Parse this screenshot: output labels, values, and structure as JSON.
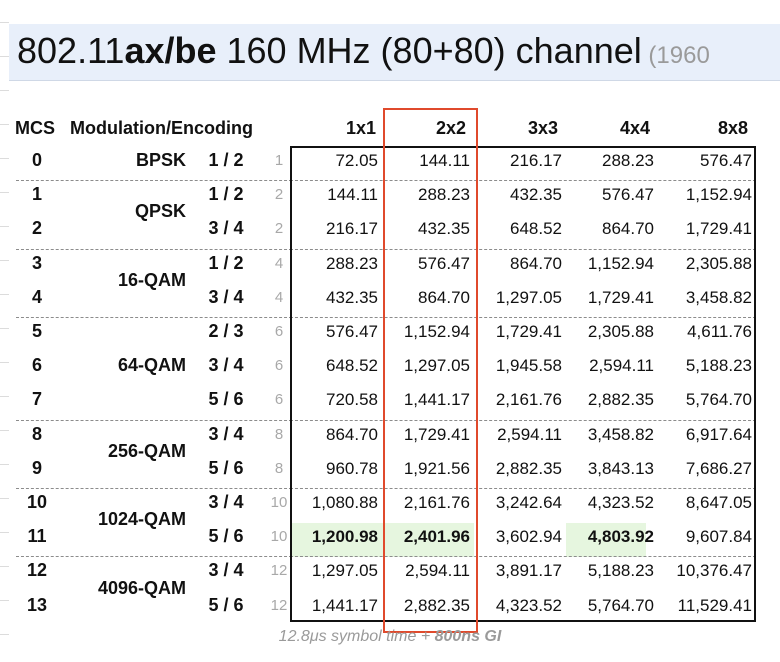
{
  "title": {
    "prefix": "802.11",
    "bold": "ax/be",
    "rest": " 160 MHz (80+80) channel",
    "sub": " (1960"
  },
  "headers": {
    "mcs": "MCS",
    "modulation": "Modulation/Encoding",
    "streams": [
      "1x1",
      "2x2",
      "3x3",
      "4x4",
      "8x8"
    ]
  },
  "rows": [
    {
      "mcs": "0",
      "mod": "BPSK",
      "cr": "1 / 2",
      "ss": "1",
      "vals": [
        "72.05",
        "144.11",
        "216.17",
        "288.23",
        "576.47"
      ]
    },
    {
      "mcs": "1",
      "mod": "QPSK",
      "cr": "1 / 2",
      "ss": "2",
      "vals": [
        "144.11",
        "288.23",
        "432.35",
        "576.47",
        "1,152.94"
      ]
    },
    {
      "mcs": "2",
      "mod": "",
      "cr": "3 / 4",
      "ss": "2",
      "vals": [
        "216.17",
        "432.35",
        "648.52",
        "864.70",
        "1,729.41"
      ]
    },
    {
      "mcs": "3",
      "mod": "16-QAM",
      "cr": "1 / 2",
      "ss": "4",
      "vals": [
        "288.23",
        "576.47",
        "864.70",
        "1,152.94",
        "2,305.88"
      ]
    },
    {
      "mcs": "4",
      "mod": "",
      "cr": "3 / 4",
      "ss": "4",
      "vals": [
        "432.35",
        "864.70",
        "1,297.05",
        "1,729.41",
        "3,458.82"
      ]
    },
    {
      "mcs": "5",
      "mod": "64-QAM",
      "cr": "2 / 3",
      "ss": "6",
      "vals": [
        "576.47",
        "1,152.94",
        "1,729.41",
        "2,305.88",
        "4,611.76"
      ]
    },
    {
      "mcs": "6",
      "mod": "",
      "cr": "3 / 4",
      "ss": "6",
      "vals": [
        "648.52",
        "1,297.05",
        "1,945.58",
        "2,594.11",
        "5,188.23"
      ]
    },
    {
      "mcs": "7",
      "mod": "",
      "cr": "5 / 6",
      "ss": "6",
      "vals": [
        "720.58",
        "1,441.17",
        "2,161.76",
        "2,882.35",
        "5,764.70"
      ]
    },
    {
      "mcs": "8",
      "mod": "256-QAM",
      "cr": "3 / 4",
      "ss": "8",
      "vals": [
        "864.70",
        "1,729.41",
        "2,594.11",
        "3,458.82",
        "6,917.64"
      ]
    },
    {
      "mcs": "9",
      "mod": "",
      "cr": "5 / 6",
      "ss": "8",
      "vals": [
        "960.78",
        "1,921.56",
        "2,882.35",
        "3,843.13",
        "7,686.27"
      ]
    },
    {
      "mcs": "10",
      "mod": "1024-QAM",
      "cr": "3 / 4",
      "ss": "10",
      "vals": [
        "1,080.88",
        "2,161.76",
        "3,242.64",
        "4,323.52",
        "8,647.05"
      ]
    },
    {
      "mcs": "11",
      "mod": "",
      "cr": "5 / 6",
      "ss": "10",
      "vals": [
        "1,200.98",
        "2,401.96",
        "3,602.94",
        "4,803.92",
        "9,607.84"
      ]
    },
    {
      "mcs": "12",
      "mod": "4096-QAM",
      "cr": "3 / 4",
      "ss": "12",
      "vals": [
        "1,297.05",
        "2,594.11",
        "3,891.17",
        "5,188.23",
        "10,376.47"
      ]
    },
    {
      "mcs": "13",
      "mod": "",
      "cr": "5 / 6",
      "ss": "12",
      "vals": [
        "1,441.17",
        "2,882.35",
        "4,323.52",
        "5,764.70",
        "11,529.41"
      ]
    }
  ],
  "highlight": {
    "row_mcs": "11",
    "bold_cols": [
      0,
      1,
      3
    ],
    "color": "#e6f6df"
  },
  "footer": {
    "italic": "12.8μs symbol time + ",
    "bold": "800ns GI"
  },
  "colors": {
    "title_bg": "#e8effa",
    "red_box": "#e04a2c"
  }
}
